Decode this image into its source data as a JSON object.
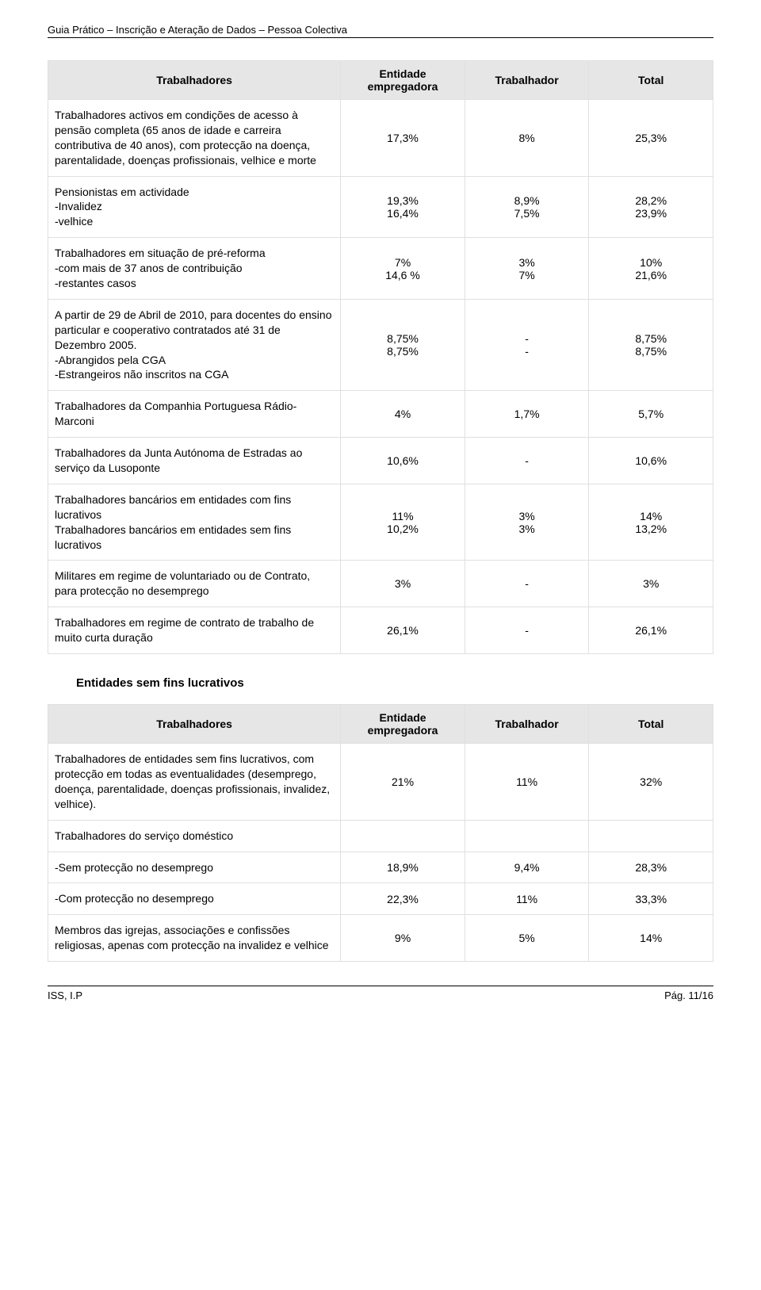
{
  "header": "Guia Prático – Inscrição e Ateração de Dados – Pessoa Colectiva",
  "table1": {
    "headers": [
      "Trabalhadores",
      "Entidade empregadora",
      "Trabalhador",
      "Total"
    ],
    "rows": [
      {
        "desc": "Trabalhadores activos em condições de acesso à pensão completa (65 anos de idade e carreira contributiva de 40 anos), com protecção na doença, parentalidade, doenças profissionais, velhice e morte",
        "c1": "17,3%",
        "c2": "8%",
        "c3": "25,3%"
      },
      {
        "desc": "Pensionistas em actividade\n-Invalidez\n-velhice",
        "c1": "19,3%\n16,4%",
        "c2": "8,9%\n7,5%",
        "c3": "28,2%\n23,9%"
      },
      {
        "desc": "Trabalhadores em situação de pré-reforma\n-com mais de 37 anos de contribuição\n-restantes casos",
        "c1": "7%\n14,6 %",
        "c2": "3%\n7%",
        "c3": "10%\n21,6%"
      },
      {
        "desc": "A partir de 29 de Abril de 2010, para docentes do ensino particular e cooperativo contratados até 31 de Dezembro 2005.\n-Abrangidos pela CGA\n-Estrangeiros não inscritos na CGA",
        "c1": "8,75%\n8,75%",
        "c2": "-\n-",
        "c3": "8,75%\n8,75%"
      },
      {
        "desc": "Trabalhadores da Companhia Portuguesa Rádio-Marconi",
        "c1": "4%",
        "c2": "1,7%",
        "c3": "5,7%"
      },
      {
        "desc": "Trabalhadores da Junta Autónoma de Estradas ao serviço da Lusoponte",
        "c1": "10,6%",
        "c2": "-",
        "c3": "10,6%"
      },
      {
        "desc": "Trabalhadores bancários em entidades com fins lucrativos\nTrabalhadores bancários em entidades sem fins lucrativos",
        "c1": "11%\n10,2%",
        "c2": "3%\n3%",
        "c3": "14%\n13,2%"
      },
      {
        "desc": "Militares em regime de voluntariado ou de Contrato, para protecção no desemprego",
        "c1": "3%",
        "c2": "-",
        "c3": "3%"
      },
      {
        "desc": "Trabalhadores em regime de contrato de trabalho de muito curta duração",
        "c1": "26,1%",
        "c2": "-",
        "c3": "26,1%"
      }
    ]
  },
  "section_title": "Entidades sem fins lucrativos",
  "table2": {
    "headers": [
      "Trabalhadores",
      "Entidade empregadora",
      "Trabalhador",
      "Total"
    ],
    "rows": [
      {
        "desc": "Trabalhadores de entidades sem fins lucrativos, com protecção em todas as eventualidades (desemprego, doença, parentalidade, doenças profissionais, invalidez, velhice).",
        "c1": "21%",
        "c2": "11%",
        "c3": "32%"
      },
      {
        "desc": "Trabalhadores do serviço doméstico",
        "c1": "",
        "c2": "",
        "c3": ""
      },
      {
        "desc": "-Sem protecção no desemprego",
        "c1": "18,9%",
        "c2": "9,4%",
        "c3": "28,3%"
      },
      {
        "desc": "-Com protecção no desemprego",
        "c1": "22,3%",
        "c2": "11%",
        "c3": "33,3%"
      },
      {
        "desc": "Membros das igrejas, associações e confissões religiosas, apenas com protecção na invalidez e velhice",
        "c1": "9%",
        "c2": "5%",
        "c3": "14%"
      }
    ]
  },
  "footer": {
    "left": "ISS, I.P",
    "right": "Pág. 11/16"
  }
}
